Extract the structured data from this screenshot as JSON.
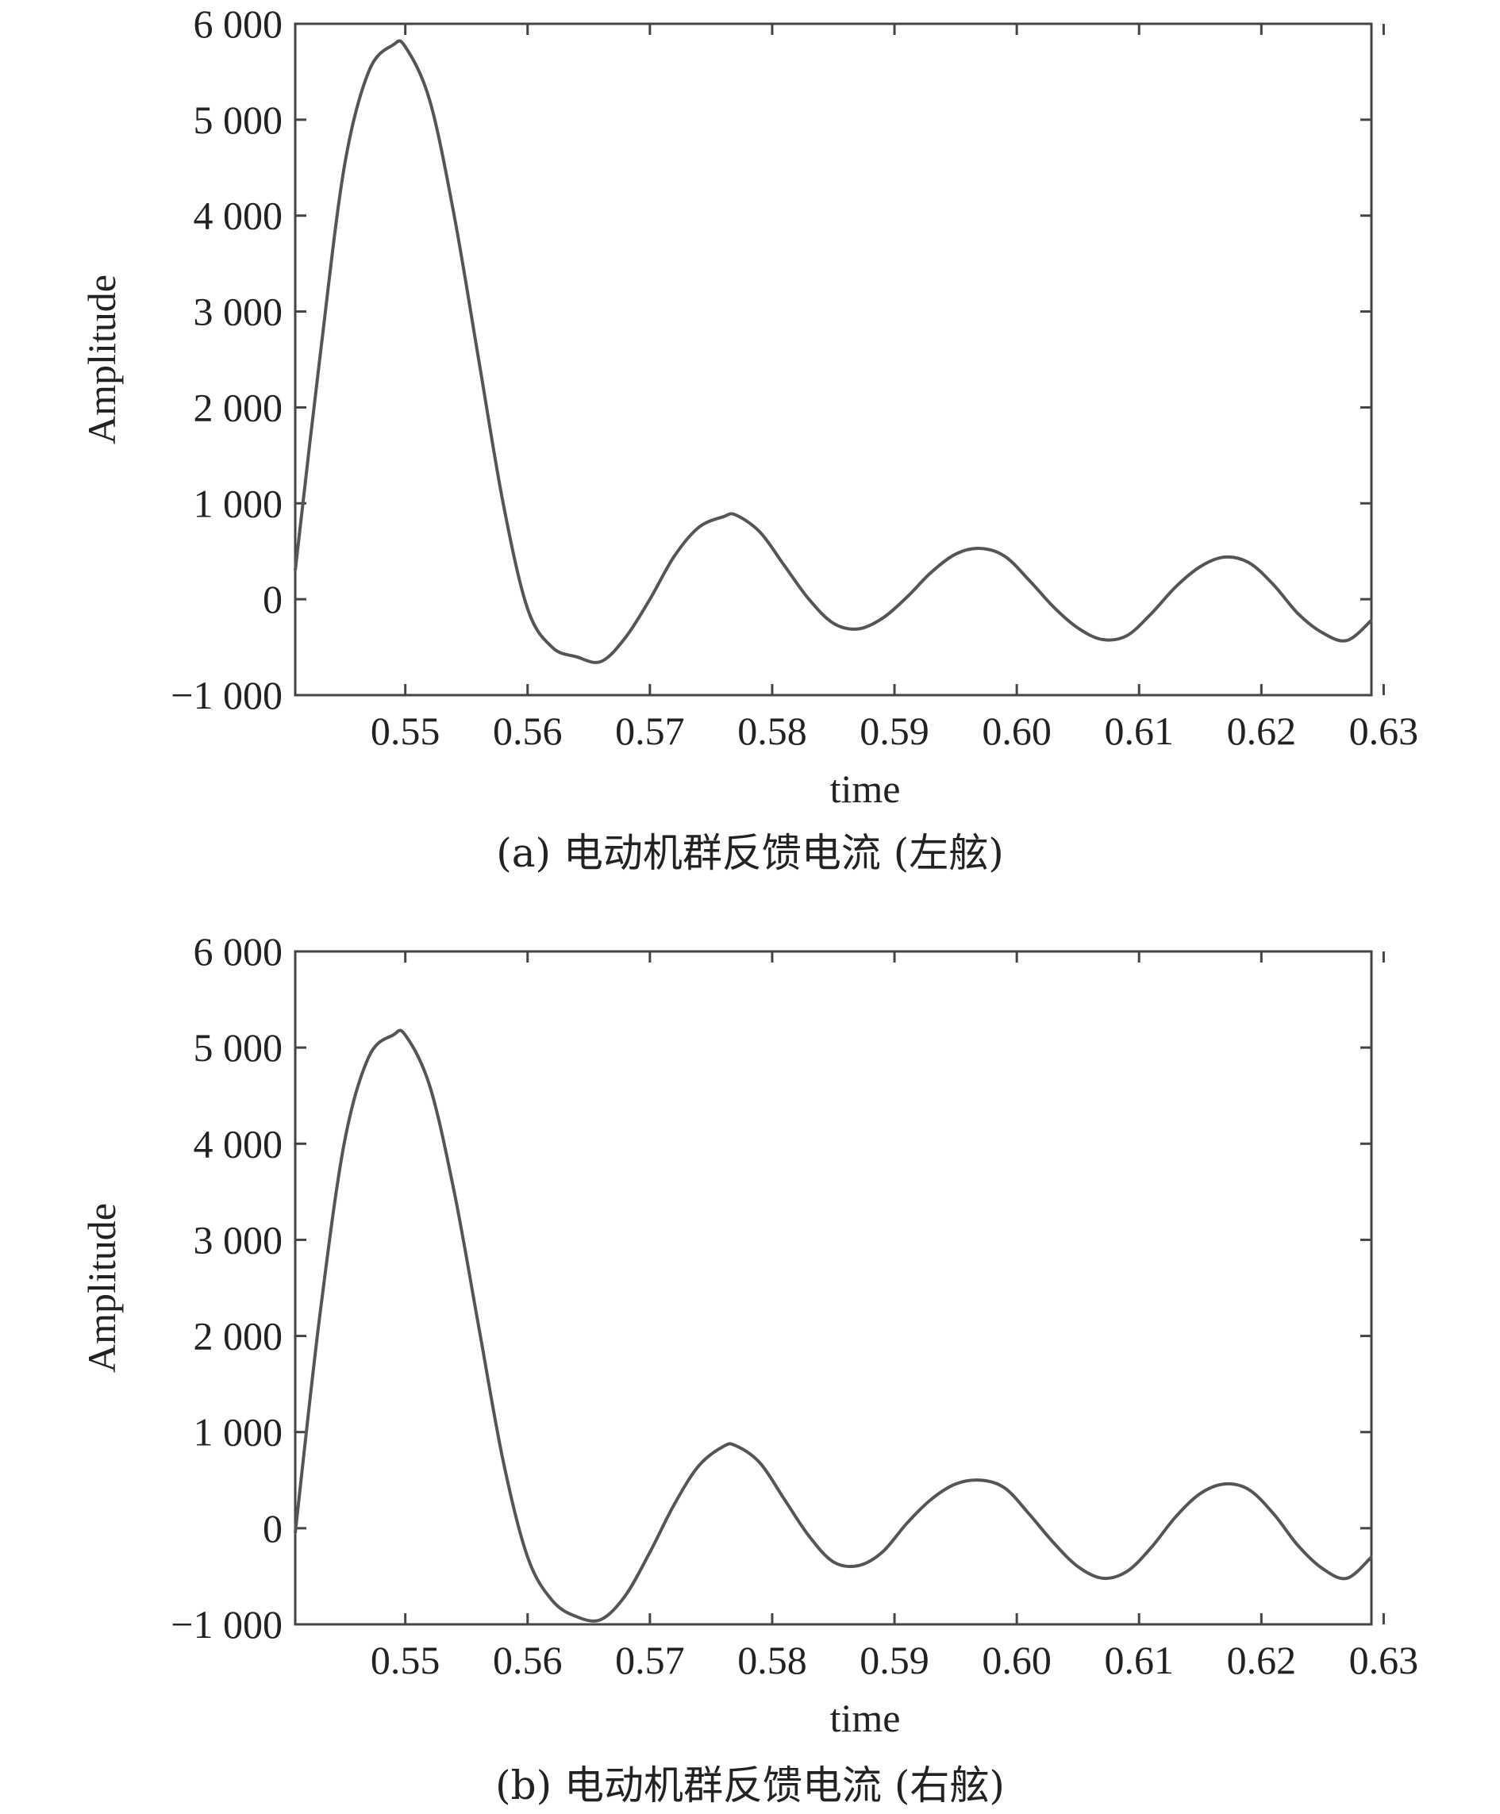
{
  "chart_data": [
    {
      "type": "line",
      "caption": "(a) 电动机群反馈电流 (左舷)",
      "xlabel": "time",
      "ylabel": "Amplitude",
      "xlim": [
        0.541,
        0.629
      ],
      "ylim": [
        -1000,
        6000
      ],
      "xticks": [
        0.55,
        0.56,
        0.57,
        0.58,
        0.59,
        0.6,
        0.61,
        0.62,
        0.63
      ],
      "xtick_labels": [
        "0.55",
        "0.56",
        "0.57",
        "0.58",
        "0.59",
        "0.60",
        "0.61",
        "0.62",
        "0.63"
      ],
      "yticks": [
        -1000,
        0,
        1000,
        2000,
        3000,
        4000,
        5000,
        6000
      ],
      "ytick_labels": [
        "−1 000",
        "0",
        "1 000",
        "2 000",
        "3 000",
        "4 000",
        "5 000",
        "6 000"
      ],
      "grid": false,
      "color": "#555555",
      "series": [
        {
          "x": [
            0.541,
            0.543,
            0.545,
            0.547,
            0.549,
            0.55,
            0.552,
            0.554,
            0.556,
            0.558,
            0.56,
            0.562,
            0.564,
            0.566,
            0.568,
            0.57,
            0.572,
            0.574,
            0.576,
            0.577,
            0.579,
            0.581,
            0.583,
            0.585,
            0.587,
            0.589,
            0.591,
            0.593,
            0.595,
            0.597,
            0.599,
            0.601,
            0.603,
            0.605,
            0.607,
            0.609,
            0.611,
            0.613,
            0.615,
            0.617,
            0.619,
            0.621,
            0.623,
            0.625,
            0.627,
            0.629
          ],
          "y": [
            300,
            2500,
            4500,
            5500,
            5780,
            5760,
            5200,
            4000,
            2500,
            1000,
            -100,
            -500,
            -600,
            -650,
            -400,
            0,
            450,
            750,
            860,
            880,
            700,
            350,
            0,
            -250,
            -310,
            -200,
            20,
            280,
            470,
            530,
            450,
            200,
            -80,
            -300,
            -420,
            -380,
            -150,
            130,
            340,
            440,
            380,
            150,
            -150,
            -350,
            -430,
            -220
          ]
        }
      ]
    },
    {
      "type": "line",
      "caption": "(b) 电动机群反馈电流 (右舷)",
      "xlabel": "time",
      "ylabel": "Amplitude",
      "xlim": [
        0.541,
        0.629
      ],
      "ylim": [
        -1000,
        6000
      ],
      "xticks": [
        0.55,
        0.56,
        0.57,
        0.58,
        0.59,
        0.6,
        0.61,
        0.62,
        0.63
      ],
      "xtick_labels": [
        "0.55",
        "0.56",
        "0.57",
        "0.58",
        "0.59",
        "0.60",
        "0.61",
        "0.62",
        "0.63"
      ],
      "yticks": [
        -1000,
        0,
        1000,
        2000,
        3000,
        4000,
        5000,
        6000
      ],
      "ytick_labels": [
        "−1 000",
        "0",
        "1 000",
        "2 000",
        "3 000",
        "4 000",
        "5 000",
        "6 000"
      ],
      "grid": false,
      "color": "#555555",
      "series": [
        {
          "x": [
            0.541,
            0.543,
            0.545,
            0.547,
            0.549,
            0.55,
            0.552,
            0.554,
            0.556,
            0.558,
            0.56,
            0.562,
            0.564,
            0.566,
            0.568,
            0.57,
            0.572,
            0.574,
            0.576,
            0.577,
            0.579,
            0.581,
            0.583,
            0.585,
            0.587,
            0.589,
            0.591,
            0.593,
            0.595,
            0.597,
            0.599,
            0.601,
            0.603,
            0.605,
            0.607,
            0.609,
            0.611,
            0.613,
            0.615,
            0.617,
            0.619,
            0.621,
            0.623,
            0.625,
            0.627,
            0.629
          ],
          "y": [
            -50,
            2200,
            4000,
            4900,
            5130,
            5130,
            4600,
            3500,
            2100,
            700,
            -300,
            -750,
            -920,
            -950,
            -700,
            -250,
            250,
            650,
            850,
            860,
            680,
            300,
            -80,
            -350,
            -390,
            -250,
            50,
            300,
            460,
            500,
            420,
            150,
            -150,
            -400,
            -520,
            -450,
            -200,
            120,
            360,
            460,
            400,
            150,
            -180,
            -420,
            -520,
            -300
          ]
        }
      ]
    }
  ]
}
